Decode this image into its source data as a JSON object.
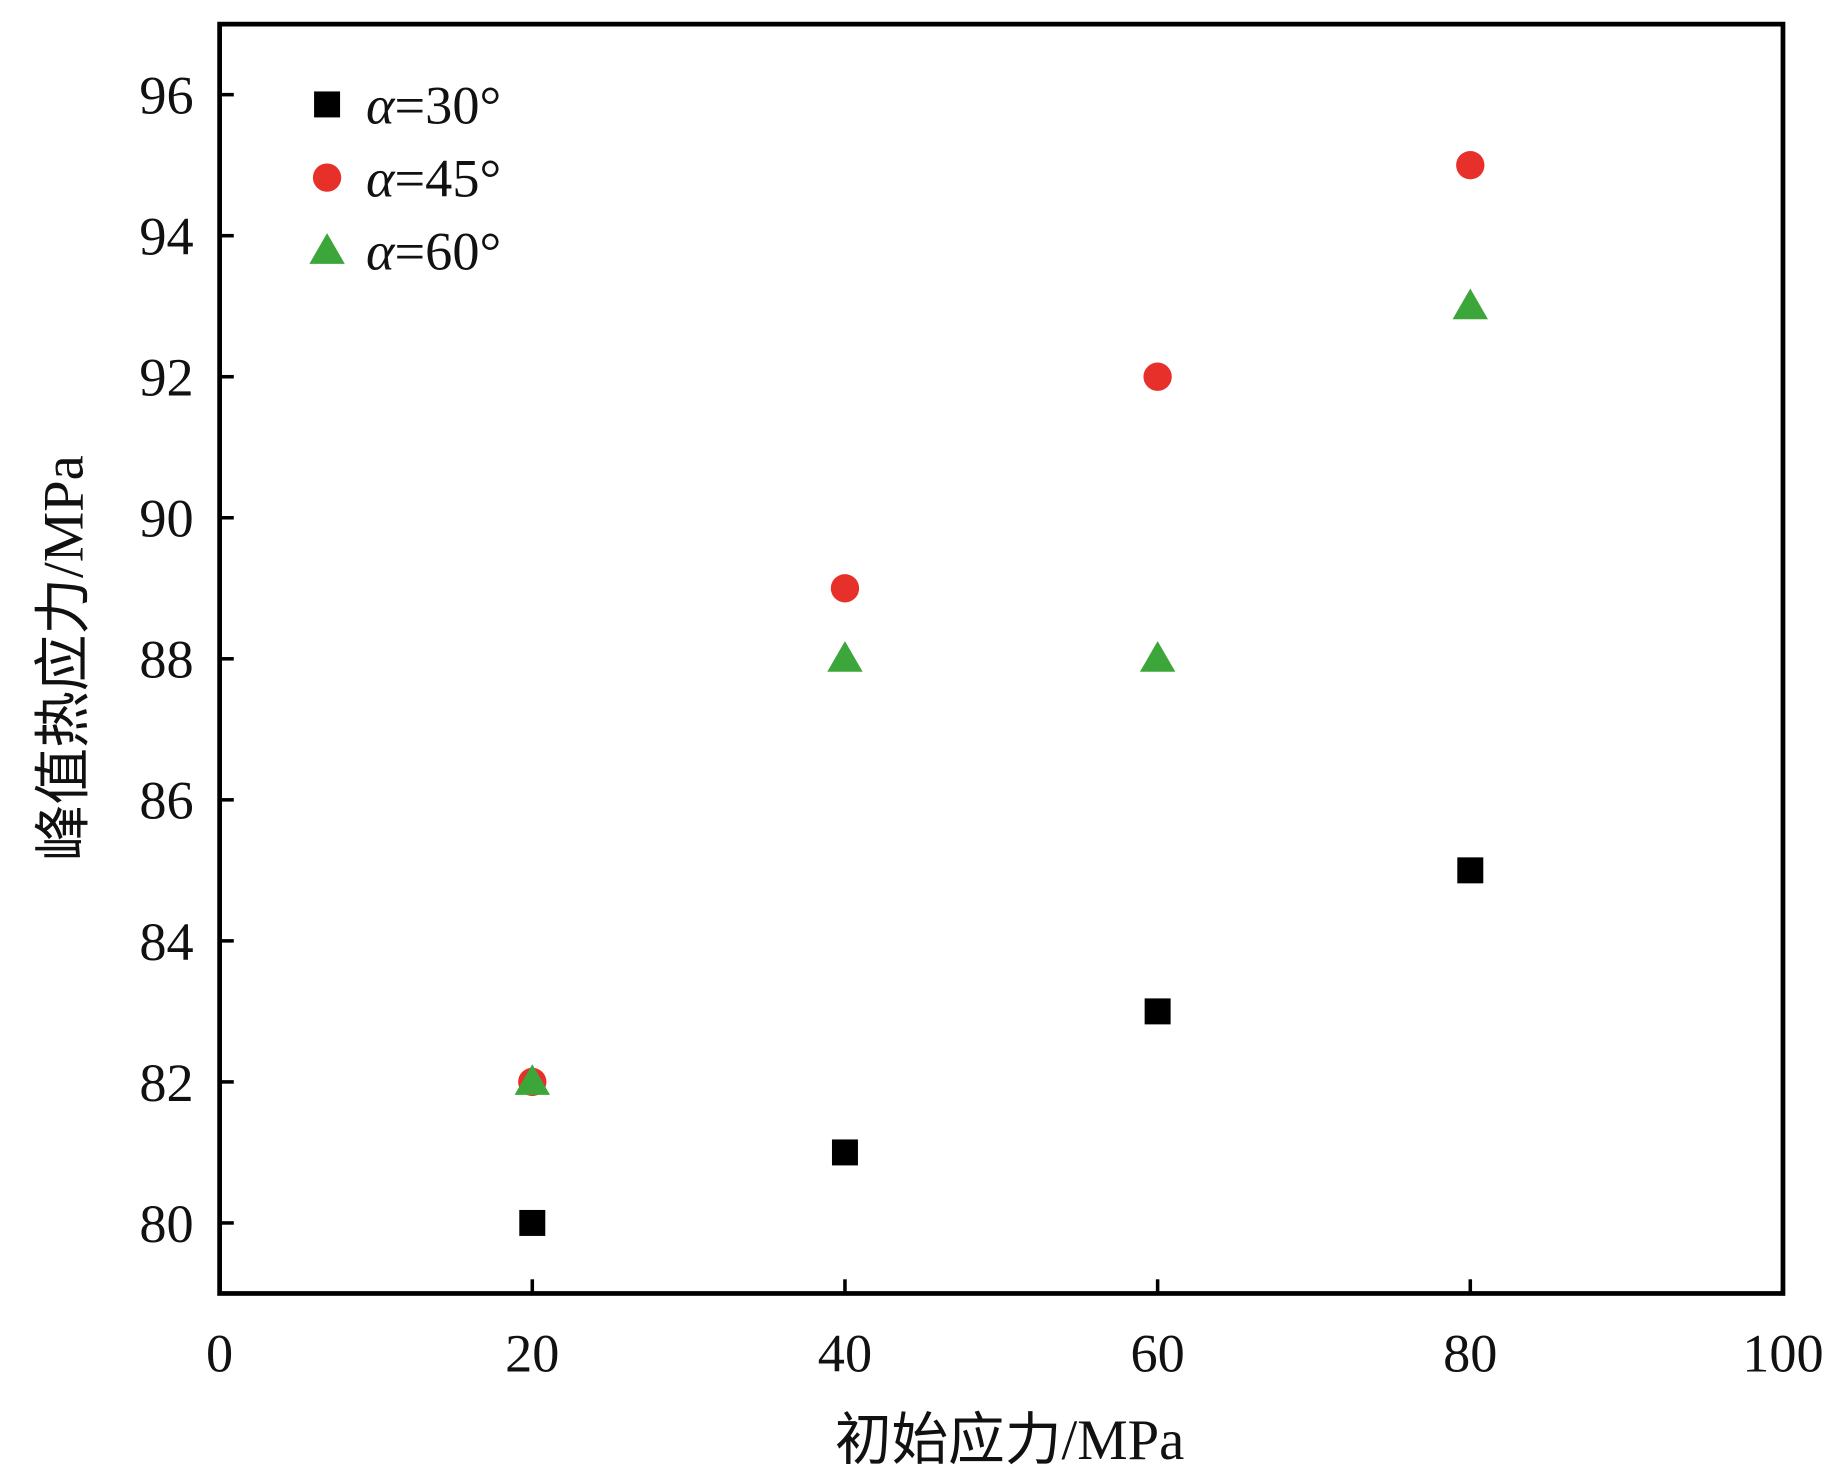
{
  "chart_data": {
    "type": "scatter",
    "title": "",
    "xlabel": "初始应力/MPa",
    "ylabel": "峰值热应力/MPa",
    "xlim": [
      0,
      100
    ],
    "ylim": [
      79,
      97
    ],
    "xticks": [
      0,
      20,
      40,
      60,
      80,
      100
    ],
    "yticks": [
      80,
      82,
      84,
      86,
      88,
      90,
      92,
      94,
      96
    ],
    "grid": false,
    "legend_position": "top-left",
    "series": [
      {
        "name": "α=30°",
        "marker": "square",
        "color": "#000000",
        "x": [
          20,
          40,
          60,
          80
        ],
        "y": [
          80,
          81,
          83,
          85
        ]
      },
      {
        "name": "α=45°",
        "marker": "circle",
        "color": "#e8302a",
        "x": [
          20,
          40,
          60,
          80
        ],
        "y": [
          82,
          89,
          92,
          95
        ]
      },
      {
        "name": "α=60°",
        "marker": "triangle",
        "color": "#3da63a",
        "x": [
          20,
          40,
          60,
          80
        ],
        "y": [
          82,
          88,
          88,
          93
        ]
      }
    ]
  }
}
